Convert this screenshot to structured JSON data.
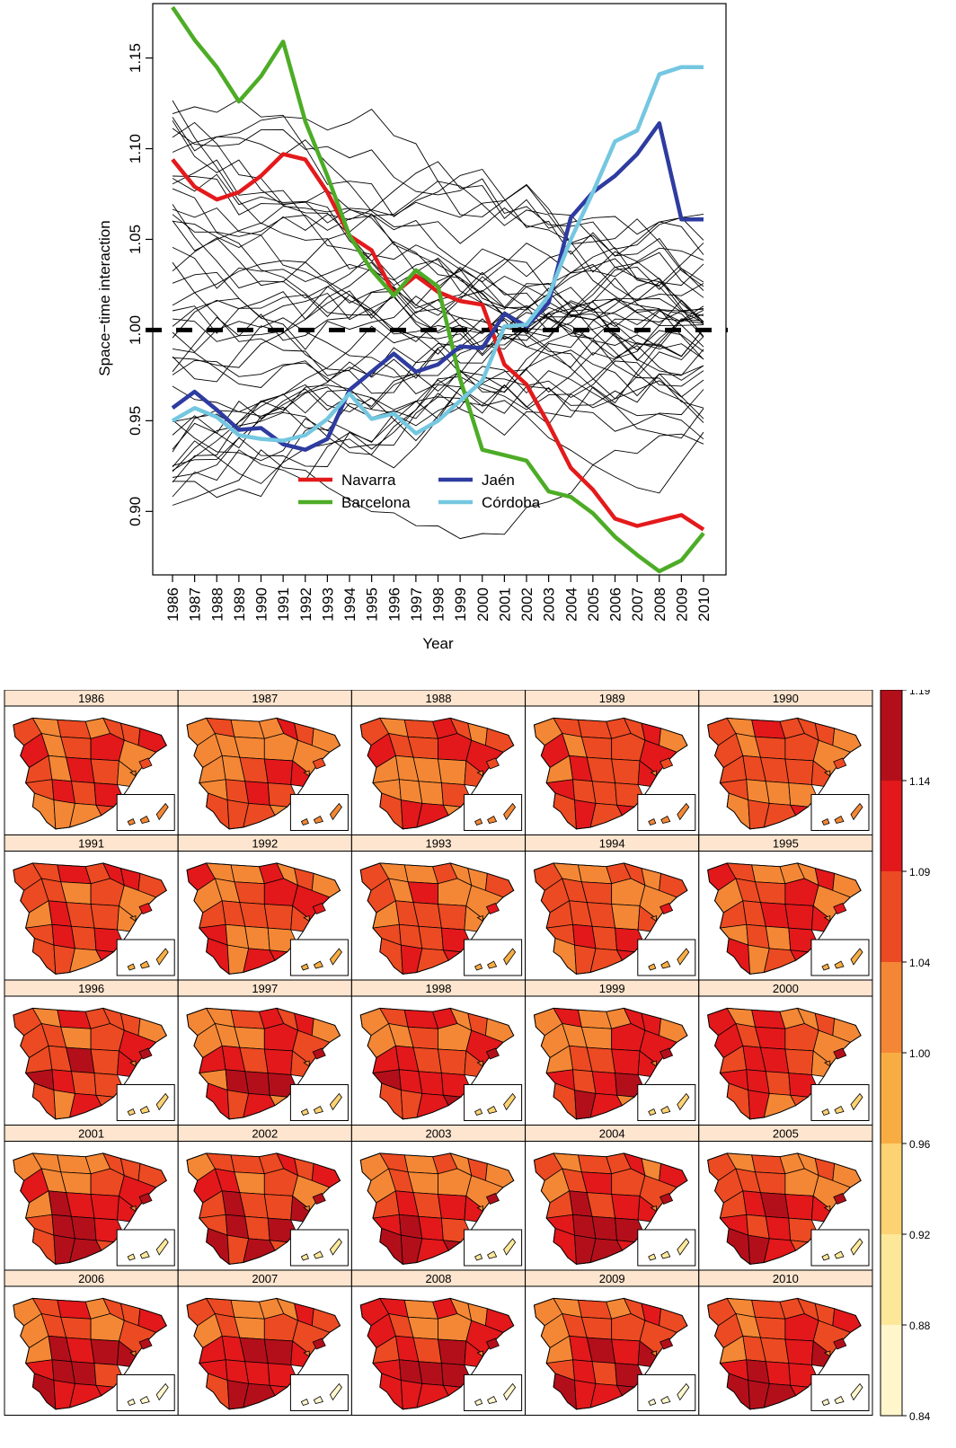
{
  "chart_data": [
    {
      "type": "line",
      "xlabel": "Year",
      "ylabel": "Space−time interaction",
      "x": [
        "1986",
        "1987",
        "1988",
        "1989",
        "1990",
        "1991",
        "1992",
        "1993",
        "1994",
        "1995",
        "1996",
        "1997",
        "1998",
        "1999",
        "2000",
        "2001",
        "2002",
        "2003",
        "2004",
        "2005",
        "2006",
        "2007",
        "2008",
        "2009",
        "2010"
      ],
      "ylim": [
        0.865,
        1.18
      ],
      "yticks": [
        "0.90",
        "0.95",
        "1.00",
        "1.05",
        "1.10",
        "1.15"
      ],
      "reference_line": 1.0,
      "legend_position": "bottom-center",
      "series": [
        {
          "name": "Navarra",
          "color": "#e31a1c",
          "values": [
            1.094,
            1.079,
            1.072,
            1.076,
            1.085,
            1.097,
            1.094,
            1.076,
            1.052,
            1.044,
            1.02,
            1.03,
            1.021,
            1.016,
            1.014,
            0.981,
            0.97,
            0.948,
            0.924,
            0.912,
            0.896,
            0.892,
            0.895,
            0.898,
            0.89
          ]
        },
        {
          "name": "Barcelona",
          "color": "#4dac26",
          "values": [
            1.178,
            1.16,
            1.145,
            1.126,
            1.14,
            1.159,
            1.115,
            1.085,
            1.052,
            1.033,
            1.019,
            1.033,
            1.024,
            0.973,
            0.934,
            0.931,
            0.928,
            0.911,
            0.908,
            0.899,
            0.886,
            0.876,
            0.867,
            0.873,
            0.888
          ]
        },
        {
          "name": "Jaén",
          "color": "#2e3ba0",
          "values": [
            0.957,
            0.966,
            0.956,
            0.945,
            0.946,
            0.937,
            0.934,
            0.94,
            0.967,
            0.977,
            0.987,
            0.977,
            0.981,
            0.991,
            0.99,
            1.009,
            1.002,
            1.015,
            1.062,
            1.076,
            1.085,
            1.097,
            1.114,
            1.061,
            1.061
          ]
        },
        {
          "name": "Córdoba",
          "color": "#74c7e0",
          "values": [
            0.95,
            0.957,
            0.952,
            0.942,
            0.94,
            0.939,
            0.942,
            0.951,
            0.965,
            0.951,
            0.954,
            0.943,
            0.95,
            0.961,
            0.972,
            1.002,
            1.003,
            1.019,
            1.05,
            1.076,
            1.104,
            1.11,
            1.141,
            1.145,
            1.145
          ]
        }
      ]
    },
    {
      "type": "heatmap",
      "title_years": [
        "1986",
        "1987",
        "1988",
        "1989",
        "1990",
        "1991",
        "1992",
        "1993",
        "1994",
        "1995",
        "1996",
        "1997",
        "1998",
        "1999",
        "2000",
        "2001",
        "2002",
        "2003",
        "2004",
        "2005",
        "2006",
        "2007",
        "2008",
        "2009",
        "2010"
      ],
      "colorbar_ticks": [
        "1.19",
        "1.14",
        "1.09",
        "1.04",
        "1.00",
        "0.96",
        "0.92",
        "0.88",
        "0.84"
      ],
      "colorbar_colors": [
        "#b30f1a",
        "#e2181b",
        "#ec4a22",
        "#f48735",
        "#f8ad43",
        "#fcd272",
        "#fde89a",
        "#fff6cc"
      ],
      "colorbar_position": "right"
    }
  ]
}
